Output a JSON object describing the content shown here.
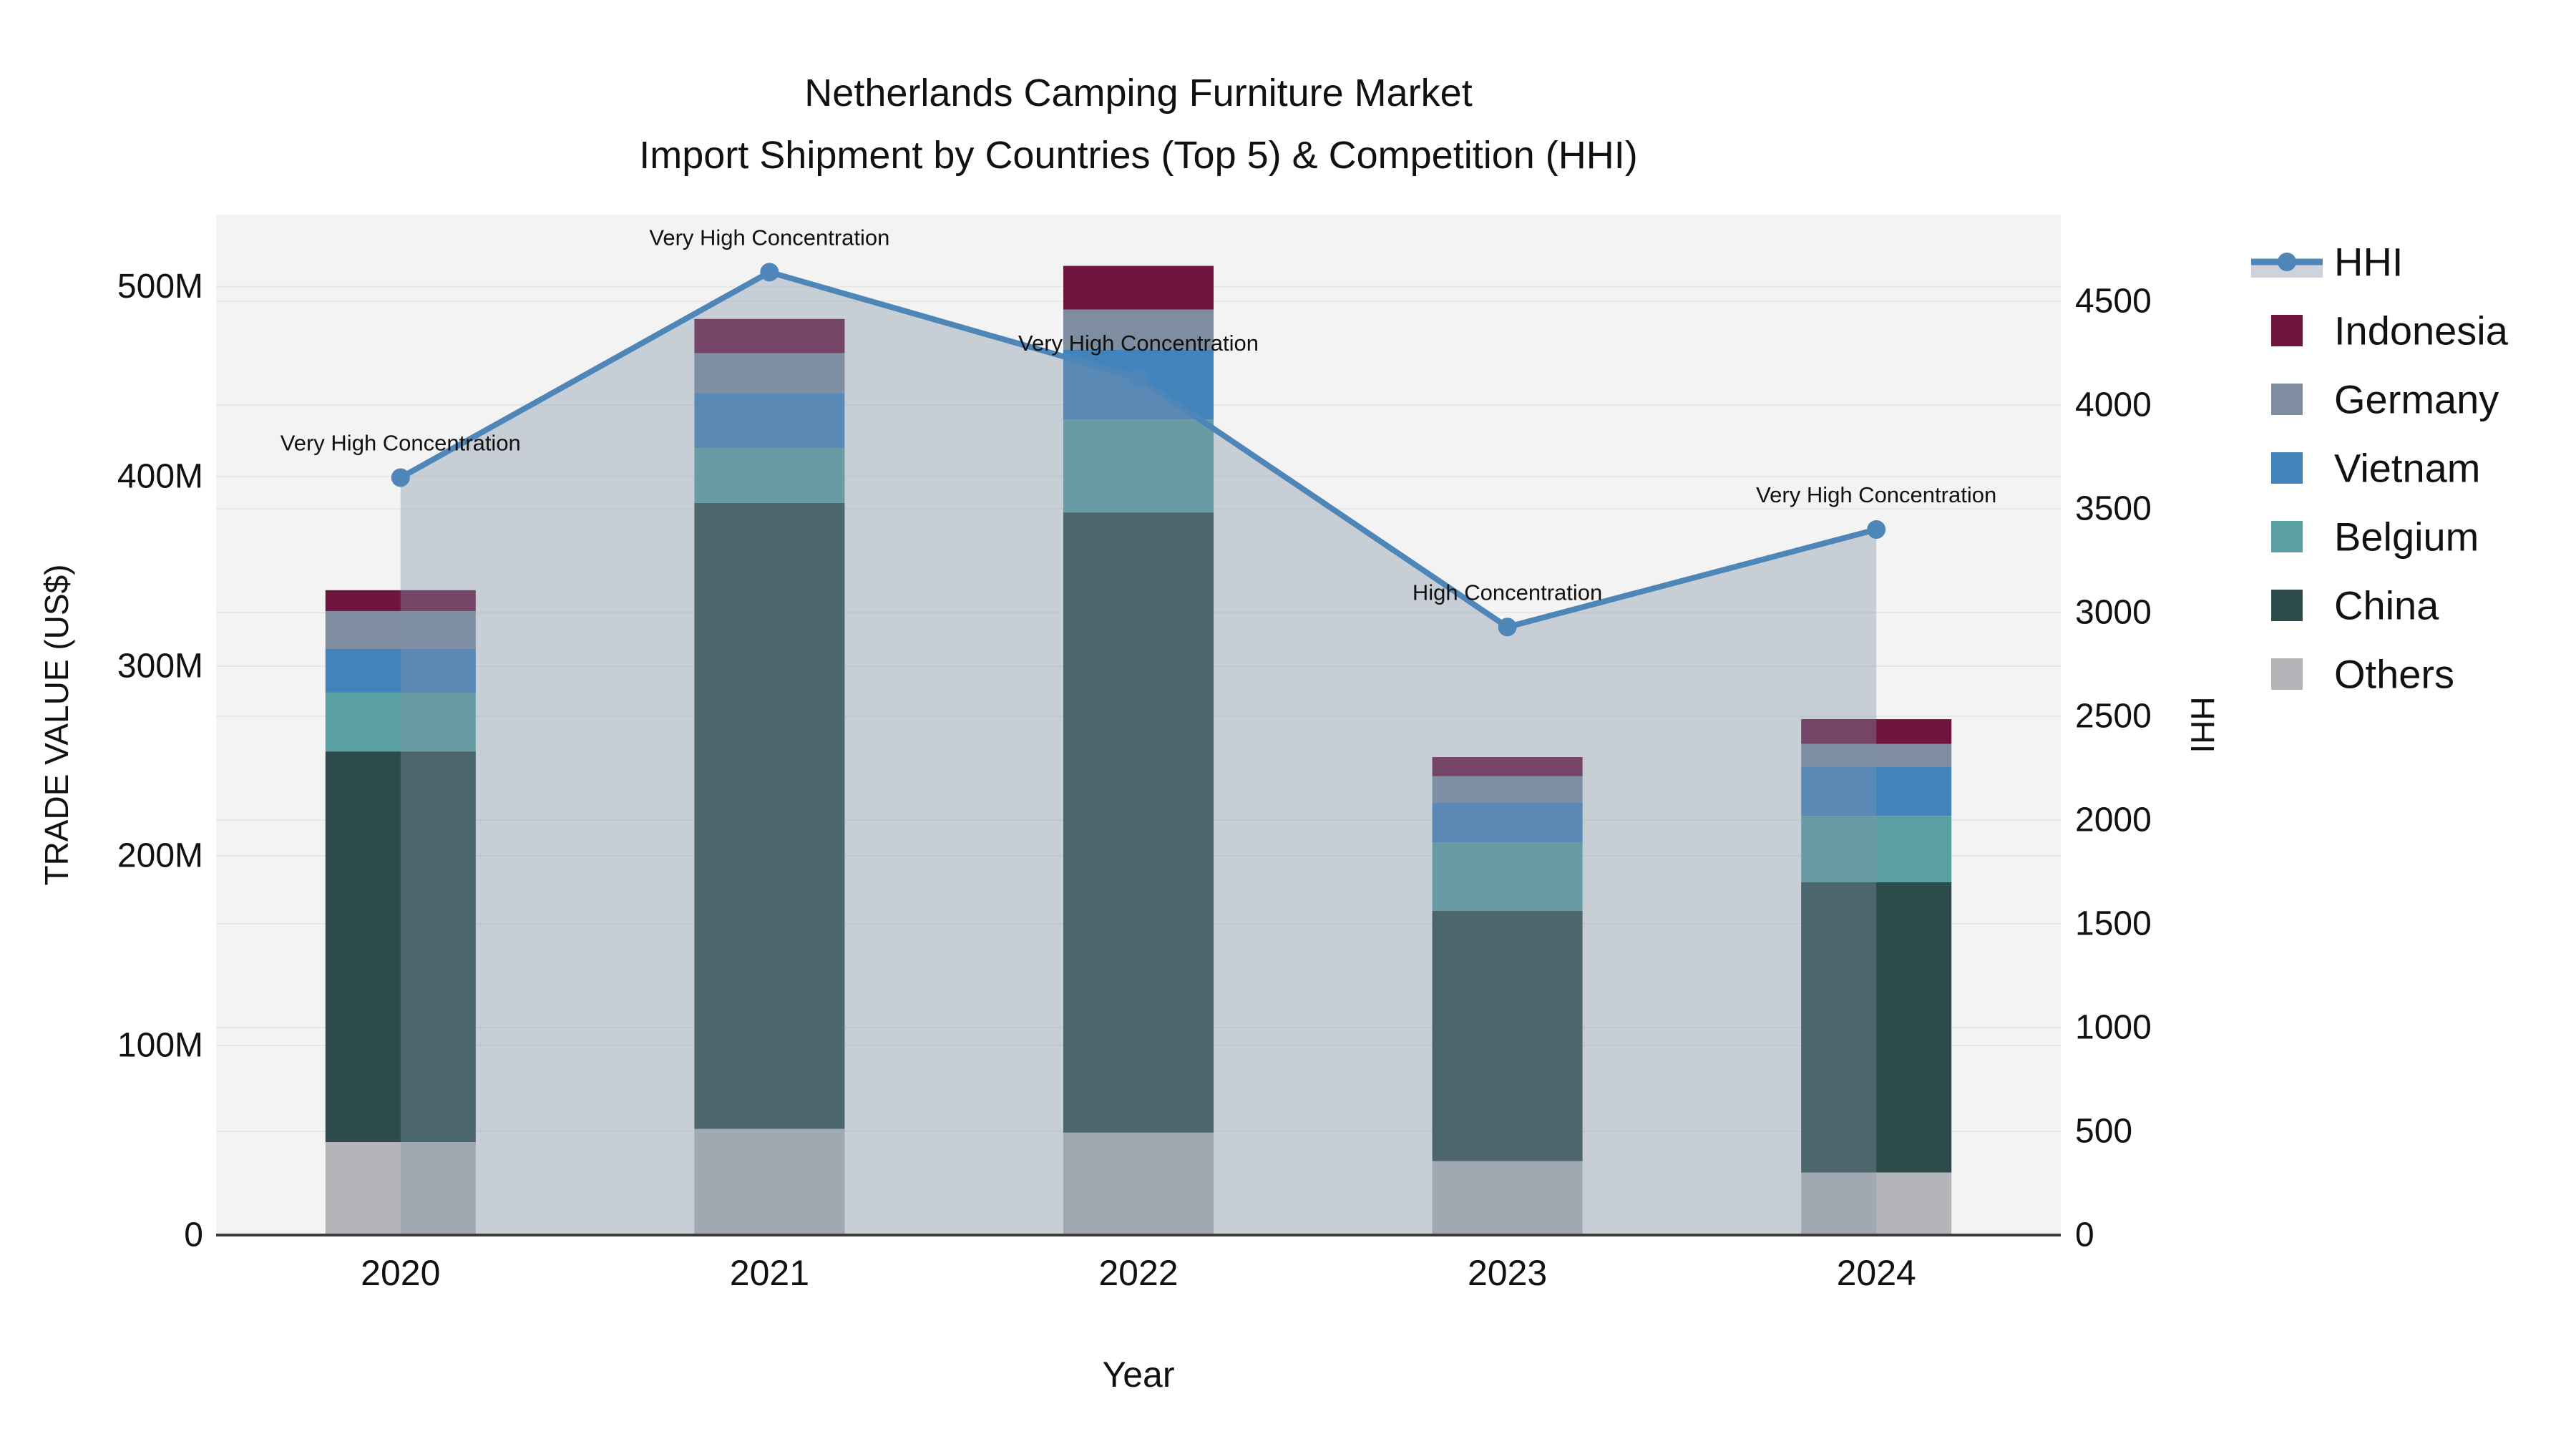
{
  "chart_data": {
    "type": "combo: stacked-bar + line-area (dual axis)",
    "title": "Netherlands Camping Furniture Market",
    "subtitle": "Import Shipment by Countries (Top 5) & Competition (HHI)",
    "xlabel": "Year",
    "ylabel_left": "TRADE VALUE (US$)",
    "ylabel_right": "HHI",
    "categories": [
      "2020",
      "2021",
      "2022",
      "2023",
      "2024"
    ],
    "values_unit_left": "millions US$",
    "y_left": {
      "max": 538,
      "tick_labels": [
        "0",
        "100M",
        "200M",
        "300M",
        "400M",
        "500M"
      ],
      "tick_values": [
        0,
        100,
        200,
        300,
        400,
        500
      ]
    },
    "y_right": {
      "max": 4917,
      "tick_labels": [
        "0",
        "500",
        "1000",
        "1500",
        "2000",
        "2500",
        "3000",
        "3500",
        "4000",
        "4500"
      ],
      "tick_values": [
        0,
        500,
        1000,
        1500,
        2000,
        2500,
        3000,
        3500,
        4000,
        4500
      ]
    },
    "bar_series_bottom_to_top": [
      {
        "name": "Others",
        "color": "#b3b5b8",
        "values": [
          49,
          56,
          54,
          39,
          33
        ]
      },
      {
        "name": "China",
        "color": "#2d4b4b",
        "values": [
          206,
          330,
          327,
          132,
          153
        ]
      },
      {
        "name": "Belgium",
        "color": "#5ba1a3",
        "values": [
          31,
          29,
          49,
          36,
          35
        ]
      },
      {
        "name": "Vietnam",
        "color": "#4283bb",
        "values": [
          23,
          29,
          37,
          21,
          26
        ]
      },
      {
        "name": "Germany",
        "color": "#7e8da0",
        "values": [
          20,
          21,
          21,
          14,
          12
        ]
      },
      {
        "name": "Indonesia",
        "color": "#6e1640",
        "values": [
          11,
          18,
          23,
          10,
          13
        ]
      }
    ],
    "bar_totals": [
      340,
      483,
      511,
      252,
      272
    ],
    "line_series": {
      "name": "HHI",
      "color": "#4e86b8",
      "marker_radius": 13,
      "area_fill": "rgba(130,146,168,0.38)",
      "values": [
        3650,
        4640,
        4130,
        2930,
        3400
      ]
    },
    "annotations": [
      {
        "category": "2020",
        "text": "Very High Concentration"
      },
      {
        "category": "2021",
        "text": "Very High Concentration"
      },
      {
        "category": "2022",
        "text": "Very High Concentration"
      },
      {
        "category": "2023",
        "text": "High Concentration"
      },
      {
        "category": "2024",
        "text": "Very High Concentration"
      }
    ],
    "legend": {
      "position": "right",
      "items": [
        "HHI",
        "Indonesia",
        "Germany",
        "Vietnam",
        "Belgium",
        "China",
        "Others"
      ]
    },
    "style": {
      "plot_bg": "#f3f3f3",
      "gridline_color": "#e7e7e7",
      "axis_line_color": "#3b3b3b",
      "legend_band_color": "#cdd3db",
      "grid_on": true
    }
  }
}
